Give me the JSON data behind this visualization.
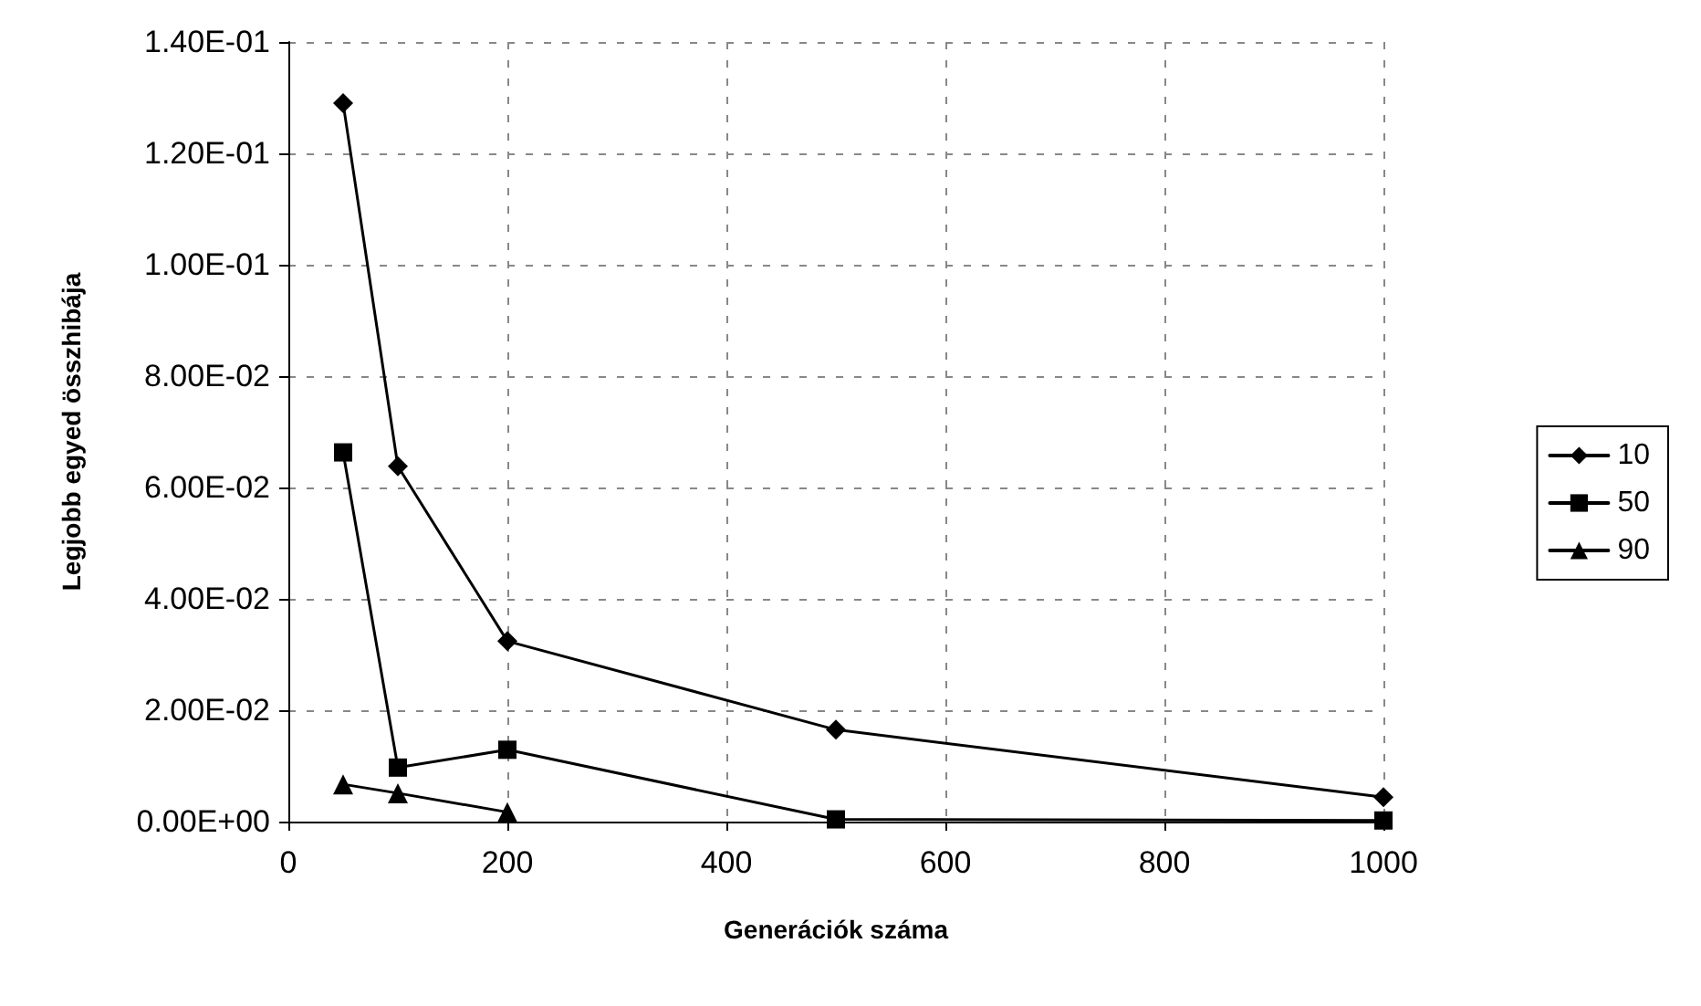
{
  "chart_data": {
    "type": "line",
    "xlabel": "Generációk száma",
    "ylabel": "Legjobb egyed összhibája",
    "x": [
      50,
      100,
      200,
      500,
      1000
    ],
    "series": [
      {
        "name": "10",
        "color": "#000000",
        "marker": "diamond",
        "values": [
          0.129,
          0.0638,
          0.0324,
          0.0165,
          0.0044
        ]
      },
      {
        "name": "50",
        "color": "#000000",
        "marker": "square",
        "values": [
          0.0663,
          0.0097,
          0.0129,
          0.0004,
          0.0002
        ]
      },
      {
        "name": "90",
        "color": "#000000",
        "marker": "triangle",
        "values": [
          0.0067,
          0.0051,
          0.0017,
          null,
          null
        ]
      }
    ],
    "xlim": [
      0,
      1000
    ],
    "xticks": [
      0,
      200,
      400,
      600,
      800,
      1000
    ],
    "ylim": [
      0,
      0.14
    ],
    "yticks": [
      {
        "value": 0,
        "label": "0.00E+00"
      },
      {
        "value": 0.02,
        "label": "2.00E-02"
      },
      {
        "value": 0.04,
        "label": "4.00E-02"
      },
      {
        "value": 0.06,
        "label": "6.00E-02"
      },
      {
        "value": 0.08,
        "label": "8.00E-02"
      },
      {
        "value": 0.1,
        "label": "1.00E-01"
      },
      {
        "value": 0.12,
        "label": "1.20E-01"
      },
      {
        "value": 0.14,
        "label": "1.40E-01"
      }
    ],
    "grid": true,
    "legend": "right",
    "line_style": "solid"
  }
}
